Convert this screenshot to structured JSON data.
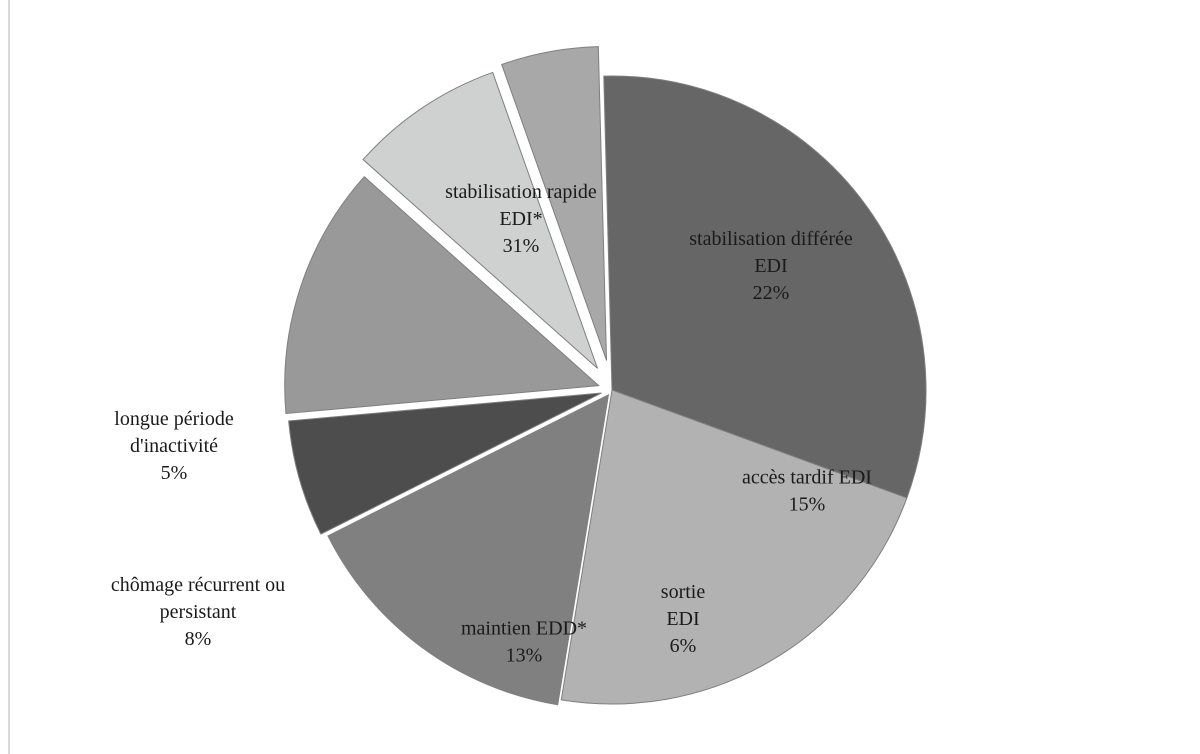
{
  "chart_data": {
    "type": "pie",
    "exploded": true,
    "slices": [
      {
        "label": [
          "stabilisation rapide",
          "EDI*"
        ],
        "value": 31,
        "percent_label": "31%",
        "color": "#666666",
        "label_color": "#1a1a1a"
      },
      {
        "label": [
          "stabilisation différée",
          "EDI"
        ],
        "value": 22,
        "percent_label": "22%",
        "color": "#b2b2b2",
        "label_color": "#1a1a1a"
      },
      {
        "label": [
          "accès tardif EDI"
        ],
        "value": 15,
        "percent_label": "15%",
        "color": "#808080",
        "label_color": "#1a1a1a"
      },
      {
        "label": [
          "sortie",
          "EDI"
        ],
        "value": 6,
        "percent_label": "6%",
        "color": "#4d4d4d",
        "label_color": "#1a1a1a"
      },
      {
        "label": [
          "maintien EDD*"
        ],
        "value": 13,
        "percent_label": "13%",
        "color": "#999999",
        "label_color": "#1a1a1a"
      },
      {
        "label": [
          "chômage récurrent ou",
          "persistant"
        ],
        "value": 8,
        "percent_label": "8%",
        "color": "#cfd1d0",
        "label_color": "#1a1a1a"
      },
      {
        "label": [
          "longue période",
          "d'inactivité"
        ],
        "value": 5,
        "percent_label": "5%",
        "color": "#a8a8a8",
        "label_color": "#1a1a1a"
      }
    ]
  }
}
